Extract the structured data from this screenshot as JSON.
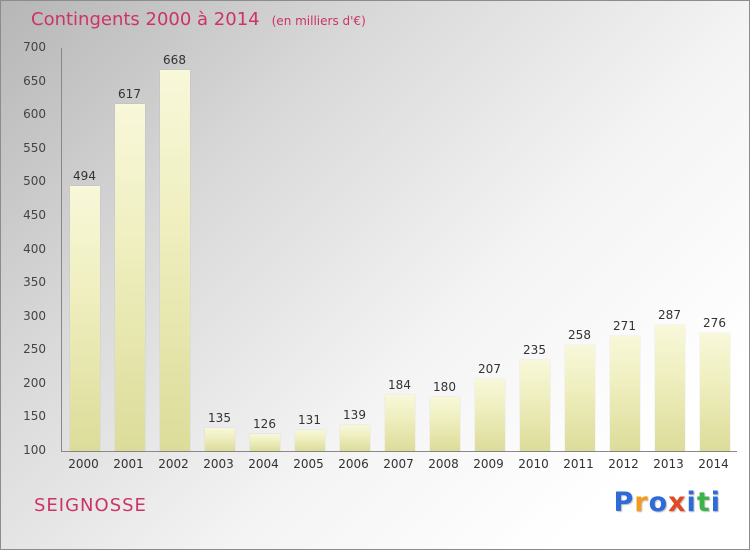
{
  "title": {
    "main": "Contingents 2000 à 2014",
    "subtitle": "(en milliers d'€)"
  },
  "footer": {
    "location": "SEIGNOSSE"
  },
  "logo": {
    "name": "Proxiti",
    "letters": [
      {
        "char": "P",
        "color": "#2e6bd8"
      },
      {
        "char": "r",
        "color": "#f59a1e"
      },
      {
        "char": "o",
        "color": "#2e6bd8"
      },
      {
        "char": "x",
        "color": "#e04a22"
      },
      {
        "char": "i",
        "color": "#2e6bd8"
      },
      {
        "char": "t",
        "color": "#3bb54a"
      },
      {
        "char": "i",
        "color": "#2e6bd8"
      }
    ]
  },
  "colors": {
    "accent": "#cc3366",
    "bar_top": "#f8f8da",
    "bar_bottom": "#dcdc9a",
    "axis": "#888888"
  },
  "chart_data": {
    "type": "bar",
    "title": "Contingents 2000 à 2014",
    "subtitle": "(en milliers d'€)",
    "categories": [
      "2000",
      "2001",
      "2002",
      "2003",
      "2004",
      "2005",
      "2006",
      "2007",
      "2008",
      "2009",
      "2010",
      "2011",
      "2012",
      "2013",
      "2014"
    ],
    "values": [
      494,
      617,
      668,
      135,
      126,
      131,
      139,
      184,
      180,
      207,
      235,
      258,
      271,
      287,
      276
    ],
    "xlabel": "",
    "ylabel": "",
    "ylim": [
      100,
      700
    ],
    "ytick_step": 50,
    "grid": false,
    "legend": false
  }
}
